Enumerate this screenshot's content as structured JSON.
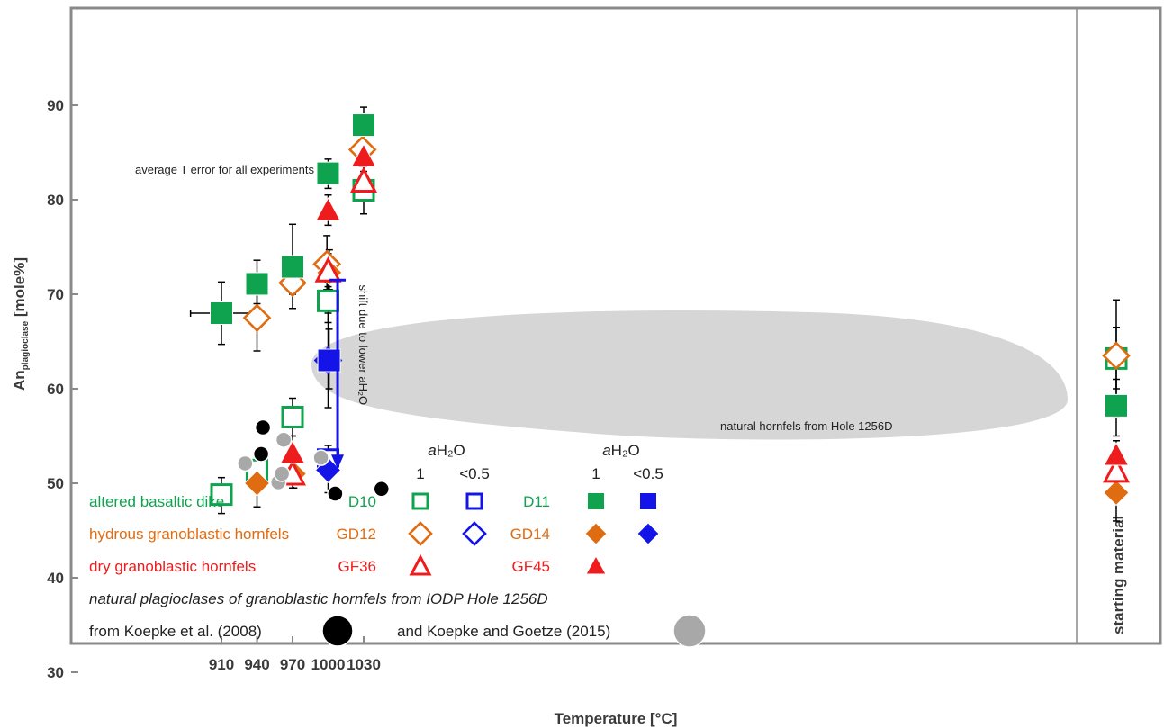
{
  "chart_data": {
    "type": "scatter",
    "xlabel": "Temperature [°C]",
    "ylabel": {
      "main": "An",
      "sub": "plagioclase",
      "unit": " [mole%]"
    },
    "xlim": [
      880,
      1075
    ],
    "ylim": [
      18,
      90
    ],
    "x_ticks": [
      910,
      940,
      970,
      1000,
      1030
    ],
    "y_ticks": [
      30,
      40,
      50,
      60,
      70,
      80,
      90
    ],
    "grid": false,
    "starting_material_panel": {
      "label": "starting material"
    },
    "colors": {
      "green": "#0fa34f",
      "blue": "#1414e8",
      "orange": "#e06c12",
      "red": "#ee1c1c",
      "black": "#000000",
      "grey": "#a8a8a8",
      "field": "#d6d6d6"
    },
    "series": [
      {
        "name": "D10",
        "marker": "square-open",
        "color": "green",
        "points": [
          [
            910,
            48.8,
            46.8,
            50.6
          ],
          [
            940,
            51.4,
            50,
            52.8
          ],
          [
            970,
            57,
            55,
            59
          ],
          [
            1000,
            69.3,
            67,
            71.3
          ],
          [
            1030,
            81,
            78.5,
            83.5
          ]
        ],
        "start": [
          63.2,
          57,
          69.4
        ]
      },
      {
        "name": "D10 aH2O<0.5",
        "marker": "square-open",
        "color": "blue",
        "points": [
          [
            1000,
            52.5,
            51,
            54
          ]
        ]
      },
      {
        "name": "D11",
        "marker": "square-filled",
        "color": "green",
        "points": [
          [
            910,
            68,
            64.7,
            71.3
          ],
          [
            940,
            71.1,
            69,
            73.6
          ],
          [
            970,
            72.9,
            70,
            77.4
          ],
          [
            1000,
            82.8,
            81.2,
            84.3
          ],
          [
            1030,
            87.9,
            86,
            89.8
          ]
        ],
        "start": [
          58.2,
          55,
          61
        ]
      },
      {
        "name": "D11 aH2O<0.5",
        "marker": "square-filled",
        "color": "blue",
        "points": [
          [
            1000.8,
            63,
            60,
            66.3
          ]
        ]
      },
      {
        "name": "GD12",
        "marker": "diamond-open",
        "color": "orange",
        "points": [
          [
            940,
            67.5,
            64,
            71
          ],
          [
            970,
            71.2,
            68.5,
            74
          ],
          [
            999,
            73.2,
            70.5,
            76.2
          ],
          [
            1029,
            85.3,
            83.5,
            87
          ]
        ],
        "start": [
          63.5,
          60,
          66.5
        ]
      },
      {
        "name": "GD12 aH2O<0.5",
        "marker": "diamond-open",
        "color": "blue",
        "points": [
          [
            1000,
            63,
            58,
            68
          ]
        ]
      },
      {
        "name": "GD14",
        "marker": "diamond-filled",
        "color": "orange",
        "points": [
          [
            940,
            50,
            47.5,
            52.5
          ],
          [
            971,
            51,
            49.5,
            52.5
          ],
          [
            1001,
            72.3,
            70.5,
            74.7
          ]
        ],
        "start": [
          49,
          46,
          52
        ]
      },
      {
        "name": "GD14 aH2O<0.5",
        "marker": "diamond-filled",
        "color": "blue",
        "points": [
          [
            1000,
            51.4,
            49,
            53.5
          ]
        ]
      },
      {
        "name": "GF36",
        "marker": "triangle-open",
        "color": "red",
        "points": [
          [
            970,
            51,
            49.5,
            52.5
          ],
          [
            1000,
            72.5,
            70.8,
            74.3
          ],
          [
            1030,
            82,
            80.5,
            83.5
          ]
        ],
        "start": [
          51.3,
          49.5,
          53
        ]
      },
      {
        "name": "GF45",
        "marker": "triangle-filled",
        "color": "red",
        "points": [
          [
            970,
            53.2,
            51.5,
            55
          ],
          [
            1000,
            78.9,
            77.3,
            80.5
          ],
          [
            1030,
            84.6,
            83,
            86
          ]
        ],
        "start": [
          53,
          51.5,
          54.5
        ]
      },
      {
        "name": "from Koepke et al. (2008)",
        "marker": "circle",
        "color": "black",
        "points": [
          [
            943.5,
            53.1
          ],
          [
            945,
            55.9
          ],
          [
            1006,
            48.9
          ],
          [
            1045,
            49.4
          ]
        ]
      },
      {
        "name": "and Koepke and Goetze (2015)",
        "marker": "circle",
        "color": "grey",
        "points": [
          [
            930,
            52.1
          ],
          [
            958,
            50.1
          ],
          [
            961,
            51
          ],
          [
            962.5,
            54.6
          ],
          [
            994,
            52.7
          ]
        ]
      }
    ],
    "average_error": {
      "x": 910,
      "y": 68,
      "xerr": 3,
      "label": "average T error for all experiments"
    },
    "shift_arrow": {
      "x": 1008,
      "y_from": 71.5,
      "y_to": 51.5,
      "label": "shift due to lower aH₂O"
    },
    "field_label": "natural hornfels from Hole 1256D",
    "legend": {
      "aH2O_header": "aH₂O",
      "aH2O_header_italic": "a",
      "aH2O_header_rest": "H₂O",
      "col_1": "1",
      "col_low": "<0.5",
      "rows": [
        {
          "label": "altered basaltic dike",
          "color": "green",
          "code_open": "D10",
          "code_filled": "D11",
          "marker_open": "square-open",
          "marker_filled": "square-filled"
        },
        {
          "label": "hydrous granoblastic hornfels",
          "color": "orange",
          "code_open": "GD12",
          "code_filled": "GD14",
          "marker_open": "diamond-open",
          "marker_filled": "diamond-filled"
        },
        {
          "label": "dry granoblastic hornfels",
          "color": "red",
          "code_open": "GF36",
          "code_filled": "GF45",
          "marker_open": "triangle-open",
          "marker_filled": "triangle-filled"
        }
      ],
      "natural_title": "natural plagioclases of granoblastic hornfels from IODP Hole 1256D",
      "koepke2008": "from Koepke et al. (2008)",
      "koepke2015": "and Koepke and Goetze (2015)"
    }
  }
}
